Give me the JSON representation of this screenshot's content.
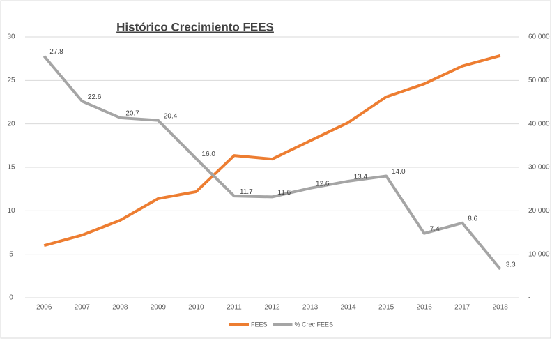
{
  "chart_data": {
    "type": "line",
    "title": "Histórico Crecimiento FEES",
    "categories": [
      "2006",
      "2007",
      "2008",
      "2009",
      "2010",
      "2011",
      "2012",
      "2013",
      "2014",
      "2015",
      "2016",
      "2017",
      "2018"
    ],
    "series": [
      {
        "name": "FEES",
        "color": "#ed7d31",
        "axis": "y2",
        "values": [
          12000,
          14400,
          17800,
          22800,
          24400,
          32700,
          31900,
          36100,
          40300,
          46200,
          49200,
          53300,
          55700
        ]
      },
      {
        "name": "% Crec FEES",
        "color": "#a5a5a5",
        "axis": "y",
        "values": [
          27.8,
          22.6,
          20.7,
          20.4,
          16.0,
          11.7,
          11.6,
          12.6,
          13.4,
          14.0,
          7.4,
          8.6,
          3.3
        ],
        "value_labels": [
          "27.8",
          "22.6",
          "20.7",
          "20.4",
          "16.0",
          "11.7",
          "11.6",
          "12.6",
          "13.4",
          "14.0",
          "7.4",
          "8.6",
          "3.3"
        ]
      }
    ],
    "ylim": [
      0,
      30
    ],
    "yticks": [
      0,
      5,
      10,
      15,
      20,
      25,
      30
    ],
    "y2lim": [
      0,
      60000
    ],
    "y2ticks": [
      {
        "value": 0,
        "label": "-"
      },
      {
        "value": 10000,
        "label": "10,000"
      },
      {
        "value": 20000,
        "label": "20,000"
      },
      {
        "value": 30000,
        "label": "30,000"
      },
      {
        "value": 40000,
        "label": "40,000"
      },
      {
        "value": 50000,
        "label": "50,000"
      },
      {
        "value": 60000,
        "label": "60,000"
      }
    ],
    "grid": true,
    "legend": "bottom"
  }
}
